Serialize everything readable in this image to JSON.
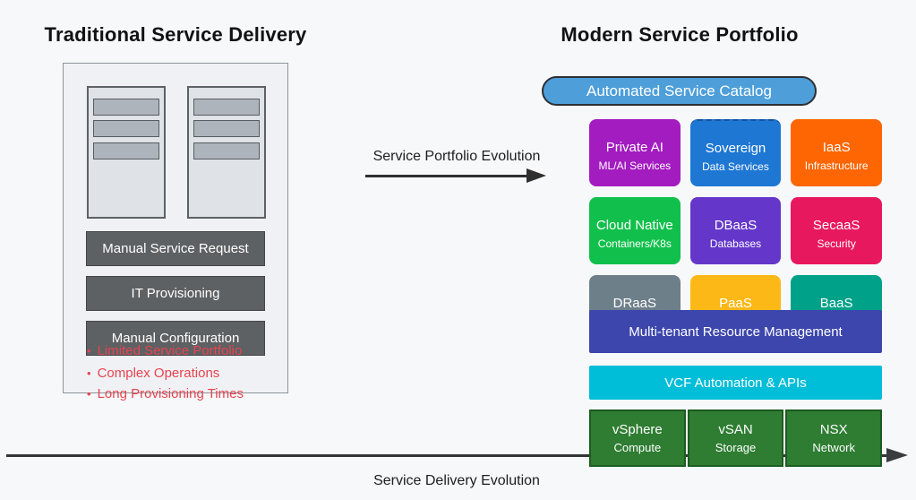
{
  "left": {
    "title": "Traditional Service Delivery",
    "process_boxes": [
      "Manual Service Request",
      "IT Provisioning",
      "Manual Configuration"
    ],
    "bullet": "•",
    "pain_points": [
      "Limited Service Portfolio",
      "Complex Operations",
      "Long Provisioning Times"
    ]
  },
  "center": {
    "arrow_label": "Service Portfolio Evolution"
  },
  "right": {
    "title": "Modern Service Portfolio",
    "catalog_pill": "Automated Service Catalog",
    "service_cards": [
      {
        "label": "Private AI",
        "sublabel": "ML/AI Services",
        "color": "#a31cc0"
      },
      {
        "label": "Sovereign",
        "sublabel": "Data Services",
        "color": "#1e77d3"
      },
      {
        "label": "IaaS",
        "sublabel": "Infrastructure",
        "color": "#fd6602"
      },
      {
        "label": "Cloud Native",
        "sublabel": "Containers/K8s",
        "color": "#11c04c"
      },
      {
        "label": "DBaaS",
        "sublabel": "Databases",
        "color": "#6437ca"
      },
      {
        "label": "SecaaS",
        "sublabel": "Security",
        "color": "#e8185f"
      },
      {
        "label": "DRaaS",
        "sublabel": "",
        "color": "#6d7f89"
      },
      {
        "label": "PaaS",
        "sublabel": "",
        "color": "#fcb817"
      },
      {
        "label": "BaaS",
        "sublabel": "",
        "color": "#00a189"
      }
    ],
    "management_bar": "Multi-tenant Resource Management",
    "automation_bar": "VCF Automation & APIs",
    "foundation_boxes": [
      {
        "label": "vSphere",
        "sublabel": "Compute"
      },
      {
        "label": "vSAN",
        "sublabel": "Storage"
      },
      {
        "label": "NSX",
        "sublabel": "Network"
      }
    ]
  },
  "bottom": {
    "arrow_label": "Service Delivery Evolution"
  },
  "colors": {
    "background": "#f7f8fa",
    "catalog_pill": "#4d9ed9",
    "management_bar": "#3c46ac",
    "automation_bar": "#00bdd8",
    "foundation_green": "#2e7d32",
    "process_gray": "#5e6164",
    "pain_red": "#e5444f",
    "arrow_dark": "#2f2f2f"
  }
}
